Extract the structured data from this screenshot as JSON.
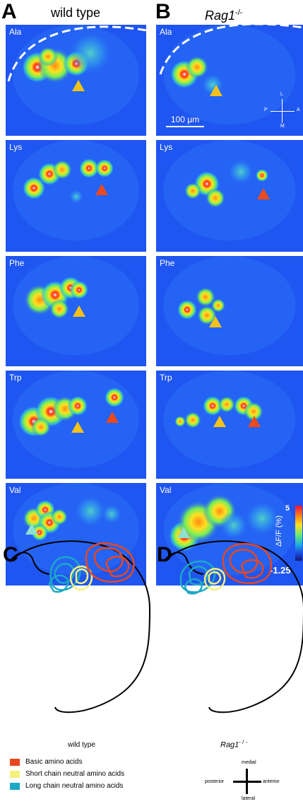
{
  "panels": {
    "A": {
      "letter": "A",
      "title": "wild type"
    },
    "B": {
      "letter": "B",
      "title_main": "Rag1",
      "title_sup": "-/-"
    },
    "C": {
      "letter": "C"
    },
    "D": {
      "letter": "D"
    }
  },
  "rows": [
    {
      "odorant": "Ala"
    },
    {
      "odorant": "Lys"
    },
    {
      "odorant": "Phe"
    },
    {
      "odorant": "Trp"
    },
    {
      "odorant": "Val"
    }
  ],
  "scale_bar": {
    "label": "100 µm"
  },
  "orientation_small": {
    "top": "L",
    "bottom": "M",
    "left": "P",
    "right": "A"
  },
  "colorbar": {
    "max": "5",
    "min": "-1.25",
    "label": "ΔF/F (%)"
  },
  "bottom": {
    "wild_type_label": "wild type",
    "rag1_main": "Rag1",
    "rag1_sup": "- / -",
    "legend": [
      {
        "label": "Basic amino acids",
        "color": "#e8471e"
      },
      {
        "label": "Short chain neutral amino acids",
        "color": "#f5f07a"
      },
      {
        "label": "Long chain neutral amino acids",
        "color": "#1ba9c6"
      }
    ],
    "orientation": {
      "top": "medial",
      "bottom": "lateral",
      "left": "posterior",
      "right": "anterior"
    }
  },
  "colors": {
    "background_map": "#1f55f0",
    "arrow_yellow": "#f2c21a",
    "arrow_red": "#ef4a1a",
    "arrow_teal": "#8ee0cf"
  }
}
